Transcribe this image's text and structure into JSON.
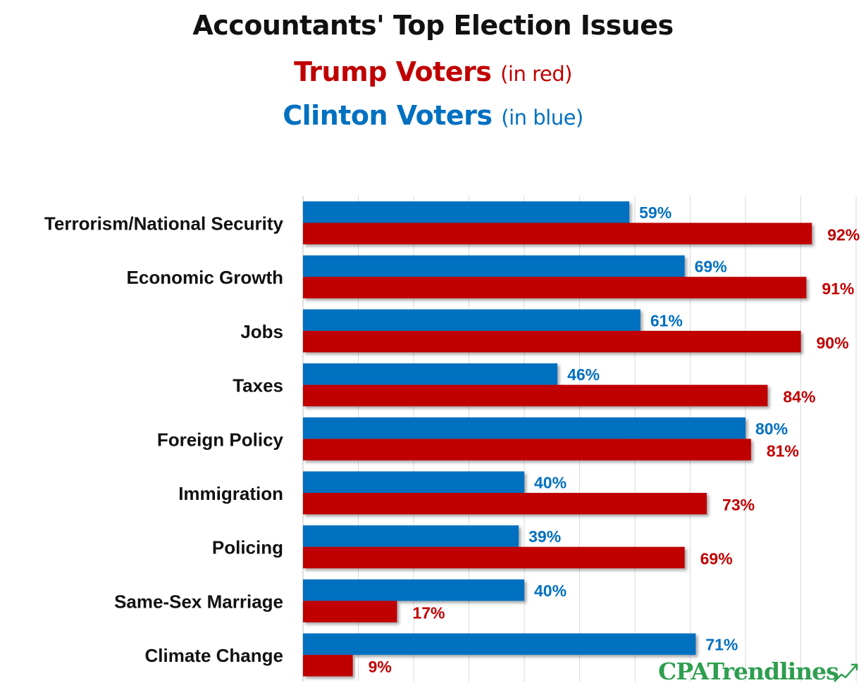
{
  "title": {
    "main": "Accountants' Top Election Issues",
    "trump": "Trump Voters",
    "trump_note": "(in red)",
    "clinton": "Clinton Voters",
    "clinton_note": "(in blue)"
  },
  "colors": {
    "trump": "#C00000",
    "clinton": "#0070C0",
    "grid": "#D9D9D9",
    "logo": "#2E9E4F"
  },
  "logo": {
    "text": "CPATrendlines",
    "icon": "trend-line-icon"
  },
  "chart_data": {
    "type": "bar",
    "orientation": "horizontal",
    "title": "Accountants' Top Election Issues",
    "categories": [
      "Terrorism/National Security",
      "Economic Growth",
      "Jobs",
      "Taxes",
      "Foreign Policy",
      "Immigration",
      "Policing",
      "Same-Sex Marriage",
      "Climate Change"
    ],
    "series": [
      {
        "name": "Clinton Voters",
        "color": "#0070C0",
        "values": [
          59,
          69,
          61,
          46,
          80,
          40,
          39,
          40,
          71
        ],
        "labels": [
          "59%",
          "69%",
          "61%",
          "46%",
          "80%",
          "40%",
          "39%",
          "40%",
          "71%"
        ]
      },
      {
        "name": "Trump Voters",
        "color": "#C00000",
        "values": [
          92,
          91,
          90,
          84,
          81,
          73,
          69,
          17,
          9
        ],
        "labels": [
          "92%",
          "91%",
          "90%",
          "84%",
          "81%",
          "73%",
          "69%",
          "17%",
          "9%"
        ]
      }
    ],
    "xlim": [
      0,
      100
    ],
    "grid": true,
    "legend": "title"
  }
}
